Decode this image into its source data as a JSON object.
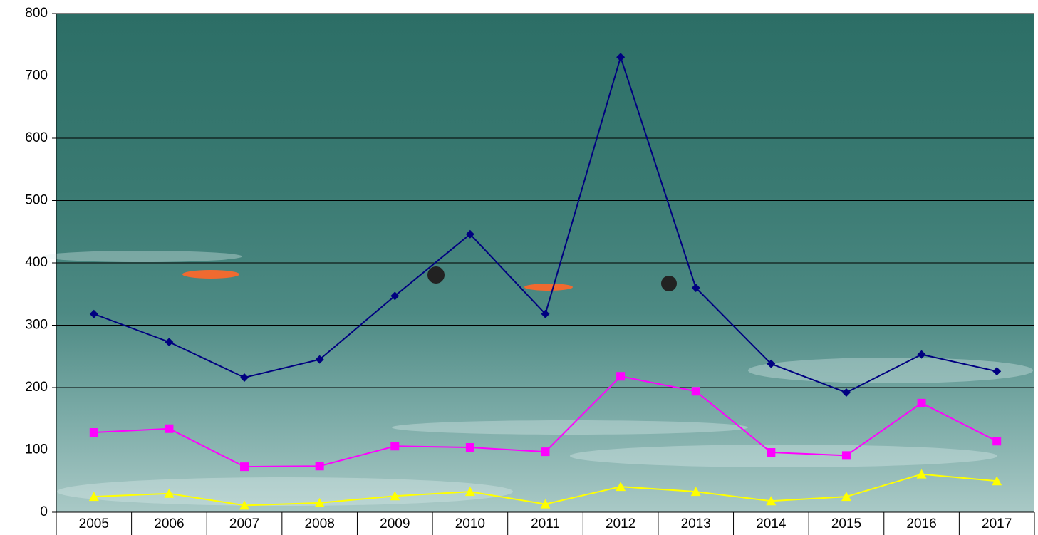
{
  "chart_data": {
    "type": "line",
    "categories": [
      "2005",
      "2006",
      "2007",
      "2008",
      "2009",
      "2010",
      "2011",
      "2012",
      "2013",
      "2014",
      "2015",
      "2016",
      "2017"
    ],
    "series": [
      {
        "color": "#000080",
        "marker": "diamond",
        "values": [
          318,
          273,
          216,
          245,
          347,
          446,
          318,
          730,
          360,
          238,
          192,
          253,
          226
        ]
      },
      {
        "color": "#ff00ff",
        "marker": "square",
        "values": [
          128,
          134,
          73,
          74,
          106,
          104,
          97,
          218,
          194,
          96,
          91,
          175,
          114
        ]
      },
      {
        "color": "#ffff00",
        "marker": "triangle",
        "values": [
          25,
          30,
          11,
          15,
          26,
          33,
          13,
          41,
          33,
          18,
          25,
          61,
          50
        ]
      }
    ],
    "ylim": [
      0,
      800
    ],
    "yticks": [
      0,
      100,
      200,
      300,
      400,
      500,
      600,
      700,
      800
    ],
    "grid": true
  }
}
